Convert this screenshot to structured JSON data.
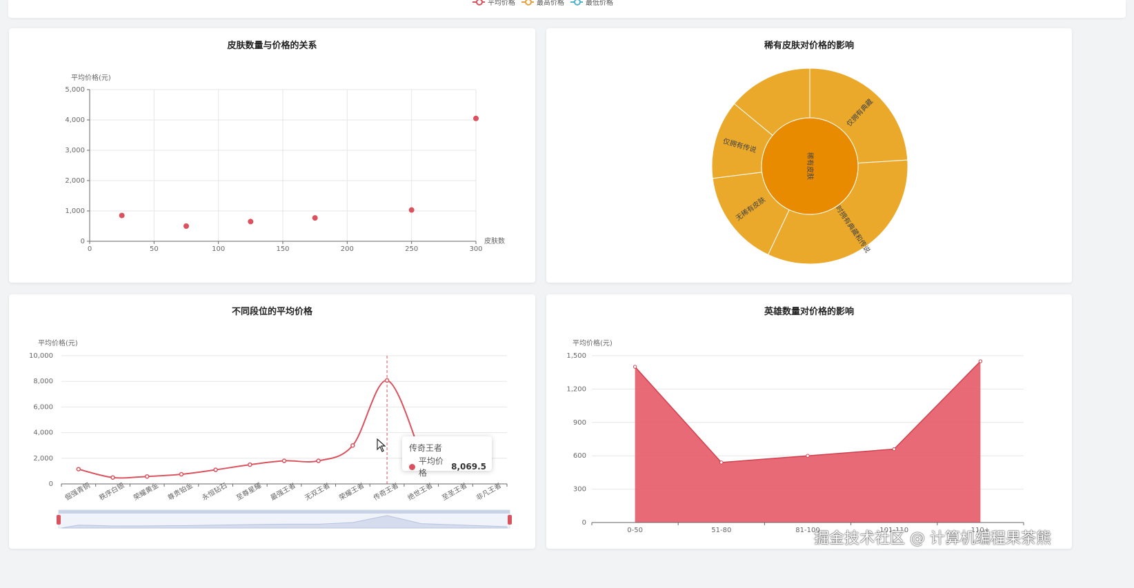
{
  "top_legend": {
    "items": [
      {
        "label": "平均价格",
        "color": "#d9525e"
      },
      {
        "label": "最高价格",
        "color": "#e6a23c"
      },
      {
        "label": "最低价格",
        "color": "#4fb3c9"
      }
    ]
  },
  "colors": {
    "red": "#d9525e",
    "area": "#e65a67",
    "sun_outer": "#eaa92b",
    "sun_inner": "#e88b00",
    "grid": "#e6e6e6"
  },
  "chart_data": [
    {
      "type": "scatter",
      "title": "皮肤数量与价格的关系",
      "ylabel": "平均价格(元)",
      "xlabel": "皮肤数",
      "xlim": [
        0,
        300
      ],
      "ylim": [
        0,
        5000
      ],
      "xticks": [
        "0",
        "50",
        "100",
        "150",
        "200",
        "250",
        "300"
      ],
      "yticks": [
        "0",
        "1,000",
        "2,000",
        "3,000",
        "4,000",
        "5,000"
      ],
      "points": [
        [
          25,
          850
        ],
        [
          75,
          500
        ],
        [
          125,
          650
        ],
        [
          175,
          770
        ],
        [
          250,
          1030
        ],
        [
          300,
          4050
        ]
      ],
      "grid": true
    },
    {
      "type": "sunburst",
      "title": "稀有皮肤对价格的影响",
      "inner": {
        "label": "稀有皮肤"
      },
      "outer": [
        {
          "label": "仅拥有典藏",
          "value": 24
        },
        {
          "label": "同时拥有典藏和传说",
          "value": 33
        },
        {
          "label": "无稀有皮肤",
          "value": 16
        },
        {
          "label": "仅拥有传说",
          "value": 13
        },
        {
          "label": "",
          "value": 14
        }
      ]
    },
    {
      "type": "line",
      "title": "不同段位的平均价格",
      "ylabel": "平均价格(元)",
      "ylim": [
        0,
        10000
      ],
      "yticks": [
        "0",
        "2,000",
        "4,000",
        "6,000",
        "8,000",
        "10,000"
      ],
      "categories": [
        "倔强青铜",
        "秩序白银",
        "荣耀黄金",
        "尊贵铂金",
        "永恒钻石",
        "至尊星耀",
        "最强王者",
        "无双王者",
        "荣耀王者",
        "传奇王者",
        "绝世王者",
        "至圣王者",
        "非凡王者"
      ],
      "series": [
        {
          "name": "平均价格",
          "values": [
            1150,
            500,
            580,
            750,
            1100,
            1500,
            1800,
            1800,
            3000,
            8069.5,
            2200,
            null,
            null
          ]
        }
      ],
      "grid": true,
      "tooltip": {
        "title": "传奇王者",
        "series": "平均价格",
        "value": "8,069.5"
      }
    },
    {
      "type": "area",
      "title": "英雄数量对价格的影响",
      "ylabel": "平均价格(元)",
      "ylim": [
        0,
        1500
      ],
      "yticks": [
        "0",
        "300",
        "600",
        "900",
        "1,200",
        "1,500"
      ],
      "categories": [
        "0-50",
        "51-80",
        "81-100",
        "101-110",
        "110+"
      ],
      "series": [
        {
          "name": "平均价格",
          "values": [
            1400,
            540,
            600,
            660,
            1450
          ]
        }
      ],
      "grid": true
    }
  ],
  "watermark": "掘金技术社区 @ 计算机编程果茶熊"
}
